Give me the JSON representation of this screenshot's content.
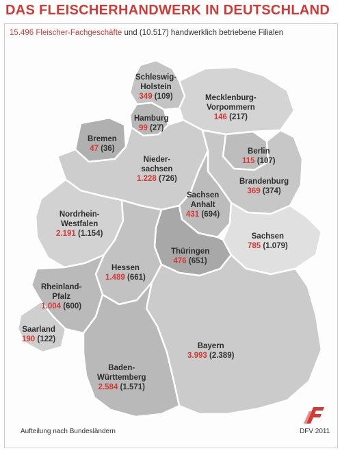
{
  "title": "DAS FLEISCHERHANDWERK IN DEUTSCHLAND",
  "subtitle": {
    "highlight": "15.496 Fleischer-Fachgeschäfte",
    "rest": " und (10.517) handwerklich betriebene Filialen"
  },
  "states": [
    {
      "id": "schleswig-holstein",
      "name": "Schleswig-\nHolstein",
      "shops": "349",
      "branches": "(109)"
    },
    {
      "id": "mecklenburg-vorpommern",
      "name": "Mecklenburg-\nVorpommern",
      "shops": "146",
      "branches": "(217)"
    },
    {
      "id": "hamburg",
      "name": "Hamburg",
      "shops": "99",
      "branches": "(27)"
    },
    {
      "id": "bremen",
      "name": "Bremen",
      "shops": "47",
      "branches": "(36)"
    },
    {
      "id": "niedersachsen",
      "name": "Nieder-\nsachsen",
      "shops": "1.228",
      "branches": "(726)"
    },
    {
      "id": "berlin",
      "name": "Berlin",
      "shops": "115",
      "branches": "(107)"
    },
    {
      "id": "brandenburg",
      "name": "Brandenburg",
      "shops": "369",
      "branches": "(374)"
    },
    {
      "id": "sachsen-anhalt",
      "name": "Sachsen\nAnhalt",
      "shops": "431",
      "branches": "(694)"
    },
    {
      "id": "nordrhein-westfalen",
      "name": "Nordrhein-\nWestfalen",
      "shops": "2.191",
      "branches": "(1.154)"
    },
    {
      "id": "sachsen",
      "name": "Sachsen",
      "shops": "785",
      "branches": "(1.079)"
    },
    {
      "id": "thueringen",
      "name": "Thüringen",
      "shops": "476",
      "branches": "(651)"
    },
    {
      "id": "hessen",
      "name": "Hessen",
      "shops": "1.489",
      "branches": "(661)"
    },
    {
      "id": "rheinland-pfalz",
      "name": "Rheinland-\nPfalz",
      "shops": "1.004",
      "branches": "(600)"
    },
    {
      "id": "saarland",
      "name": "Saarland",
      "shops": "190",
      "branches": "(122)"
    },
    {
      "id": "bayern",
      "name": "Bayern",
      "shops": "3.993",
      "branches": "(2.389)"
    },
    {
      "id": "baden-wuerttemberg",
      "name": "Baden-\nWürttemberg",
      "shops": "2.584",
      "branches": "(1.571)"
    }
  ],
  "footnote": "Aufteilung nach Bundesländern",
  "credit": "DFV 2011",
  "colors": {
    "accent": "#d23a35",
    "state_fill": "#c9c9c9",
    "state_fill_light": "#dedede",
    "state_fill_dark": "#b3b3b3",
    "border": "#ffffff"
  }
}
